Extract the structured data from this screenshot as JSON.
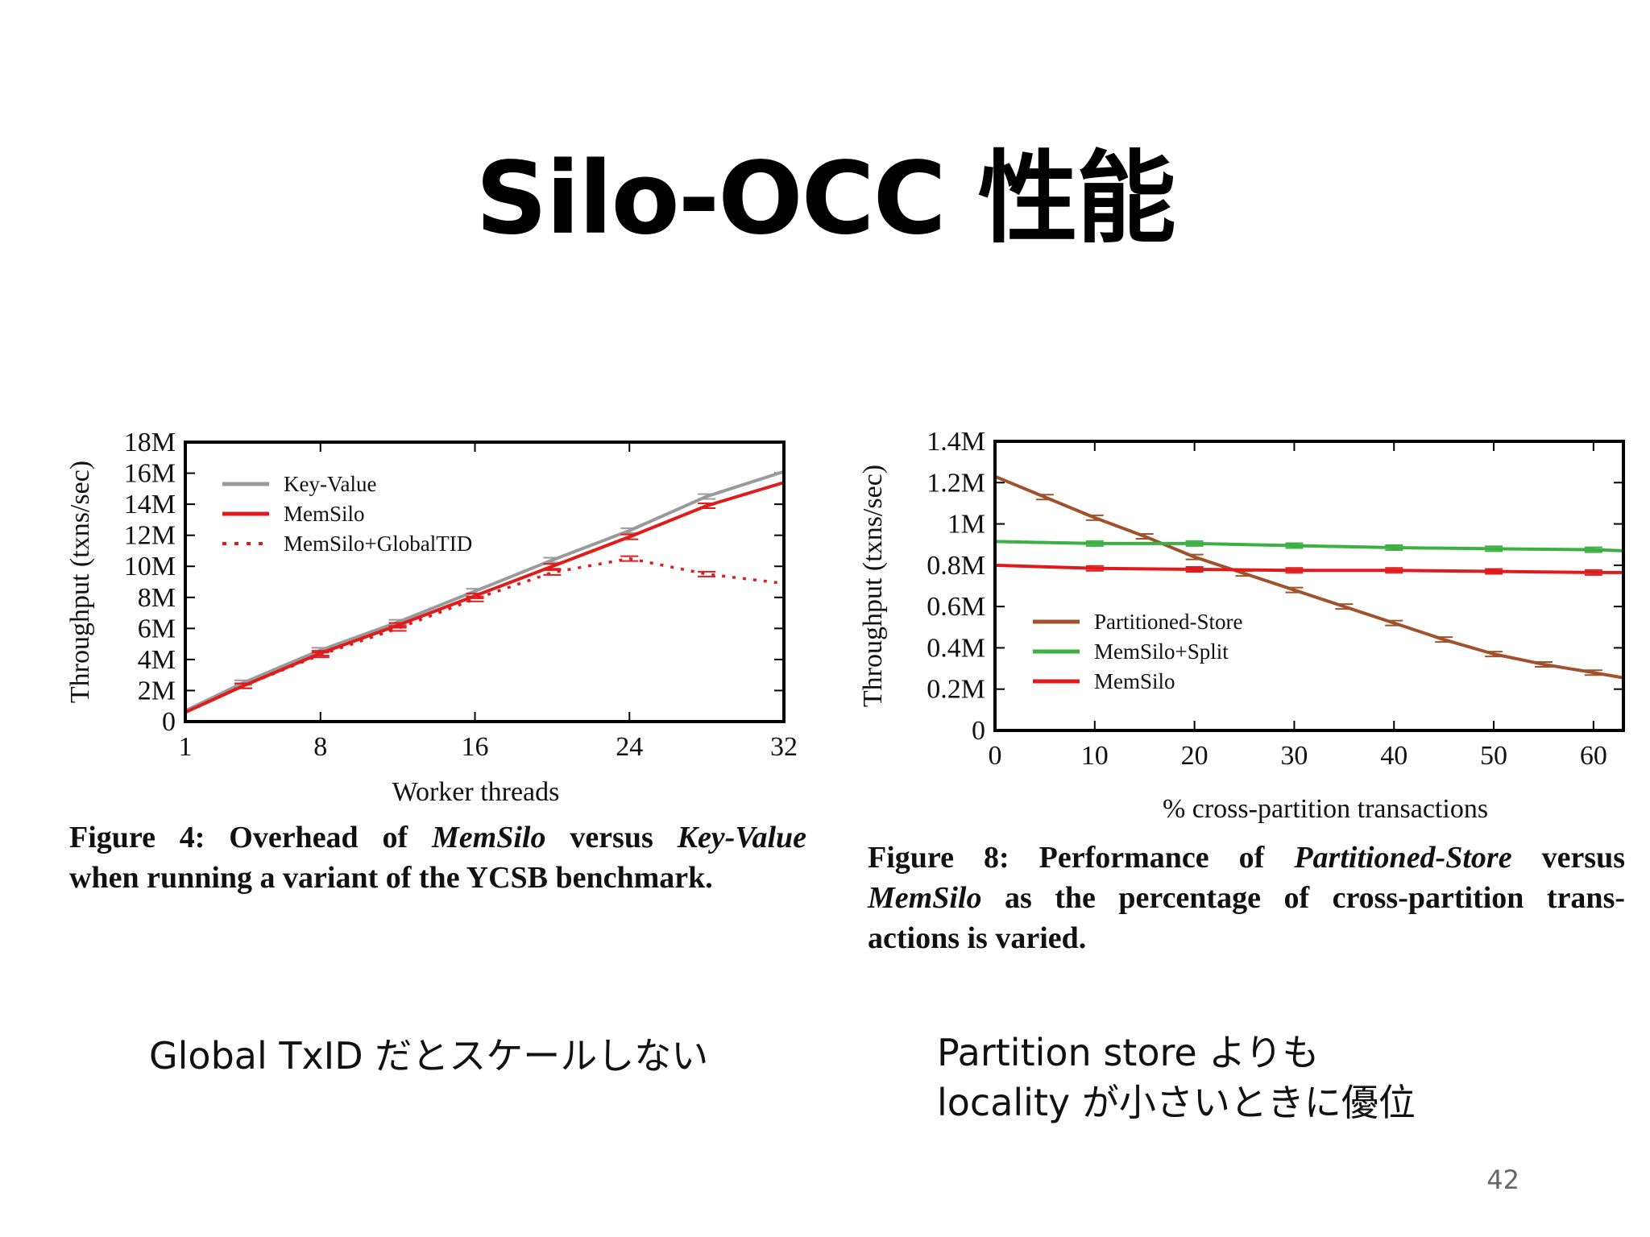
{
  "slide": {
    "title": "Silo-OCC 性能",
    "page_number": "42"
  },
  "figure4": {
    "caption_label": "Figure 4:",
    "caption_w1": "Overhead",
    "caption_w2": "of",
    "caption_em1": "MemSilo",
    "caption_w3": "versus",
    "caption_em2": "Key-Value",
    "caption_line2": "when running a variant of the YCSB benchmark."
  },
  "figure8": {
    "caption_label": "Figure 8:",
    "caption_w1": "Performance",
    "caption_w2": "of",
    "caption_em1": "Partitioned-Store",
    "caption_w3": "versus",
    "caption_em2": "MemSilo",
    "caption_line2_rest": "as the percentage of cross-partition trans-",
    "caption_line3": "actions is varied."
  },
  "notes": {
    "left": "Global TxID だとスケールしない",
    "right_line1": "Partition store よりも",
    "right_line2": "locality が小さいときに優位"
  },
  "chart_data": [
    {
      "type": "line",
      "xlabel": "Worker threads",
      "ylabel": "Throughput (txns/sec)",
      "xlim": [
        1,
        32
      ],
      "ylim": [
        0,
        18000000
      ],
      "x_ticks": [
        "1",
        "8",
        "16",
        "24",
        "32"
      ],
      "x_tick_values": [
        1,
        8,
        16,
        24,
        32
      ],
      "y_ticks": [
        "0",
        "2M",
        "4M",
        "6M",
        "8M",
        "10M",
        "12M",
        "14M",
        "16M",
        "18M"
      ],
      "y_tick_values": [
        0,
        2000000,
        4000000,
        6000000,
        8000000,
        10000000,
        12000000,
        14000000,
        16000000,
        18000000
      ],
      "legend_position": "top-left",
      "series": [
        {
          "name": "Key-Value",
          "color": "#9a9a9a",
          "style": "solid",
          "x": [
            1,
            4,
            8,
            12,
            16,
            20,
            24,
            28,
            32
          ],
          "y": [
            700000,
            2500000,
            4600000,
            6400000,
            8400000,
            10400000,
            12300000,
            14500000,
            16100000
          ]
        },
        {
          "name": "MemSilo",
          "color": "#e01b1b",
          "style": "solid",
          "x": [
            1,
            4,
            8,
            12,
            16,
            20,
            24,
            28,
            32
          ],
          "y": [
            600000,
            2300000,
            4400000,
            6200000,
            8100000,
            10000000,
            11900000,
            13900000,
            15400000
          ]
        },
        {
          "name": "MemSilo+GlobalTID",
          "color": "#e01b1b",
          "style": "dotted",
          "x": [
            1,
            4,
            8,
            12,
            16,
            20,
            24,
            28,
            32
          ],
          "y": [
            600000,
            2300000,
            4300000,
            6000000,
            7900000,
            9600000,
            10500000,
            9500000,
            8900000
          ]
        }
      ]
    },
    {
      "type": "line",
      "xlabel": "% cross-partition transactions",
      "ylabel": "Throughput (txns/sec)",
      "xlim": [
        0,
        63
      ],
      "ylim": [
        0,
        1400000
      ],
      "x_ticks": [
        "0",
        "10",
        "20",
        "30",
        "40",
        "50",
        "60"
      ],
      "x_tick_values": [
        0,
        10,
        20,
        30,
        40,
        50,
        60
      ],
      "y_ticks": [
        "0",
        "0.2M",
        "0.4M",
        "0.6M",
        "0.8M",
        "1M",
        "1.2M",
        "1.4M"
      ],
      "y_tick_values": [
        0,
        200000,
        400000,
        600000,
        800000,
        1000000,
        1200000,
        1400000
      ],
      "legend_position": "center-left",
      "series": [
        {
          "name": "Partitioned-Store",
          "color": "#a0522d",
          "style": "solid",
          "x": [
            0,
            5,
            10,
            15,
            20,
            25,
            30,
            35,
            40,
            45,
            50,
            55,
            60,
            63
          ],
          "y": [
            1230000,
            1130000,
            1030000,
            940000,
            840000,
            760000,
            680000,
            600000,
            520000,
            440000,
            370000,
            320000,
            280000,
            255000
          ]
        },
        {
          "name": "MemSilo+Split",
          "color": "#3cb043",
          "style": "solid",
          "x": [
            0,
            10,
            20,
            30,
            40,
            50,
            60,
            63
          ],
          "y": [
            915000,
            905000,
            905000,
            895000,
            885000,
            880000,
            875000,
            870000
          ]
        },
        {
          "name": "MemSilo",
          "color": "#e01b1b",
          "style": "solid",
          "x": [
            0,
            10,
            20,
            30,
            40,
            50,
            60,
            63
          ],
          "y": [
            800000,
            785000,
            780000,
            775000,
            775000,
            770000,
            765000,
            765000
          ]
        }
      ]
    }
  ]
}
